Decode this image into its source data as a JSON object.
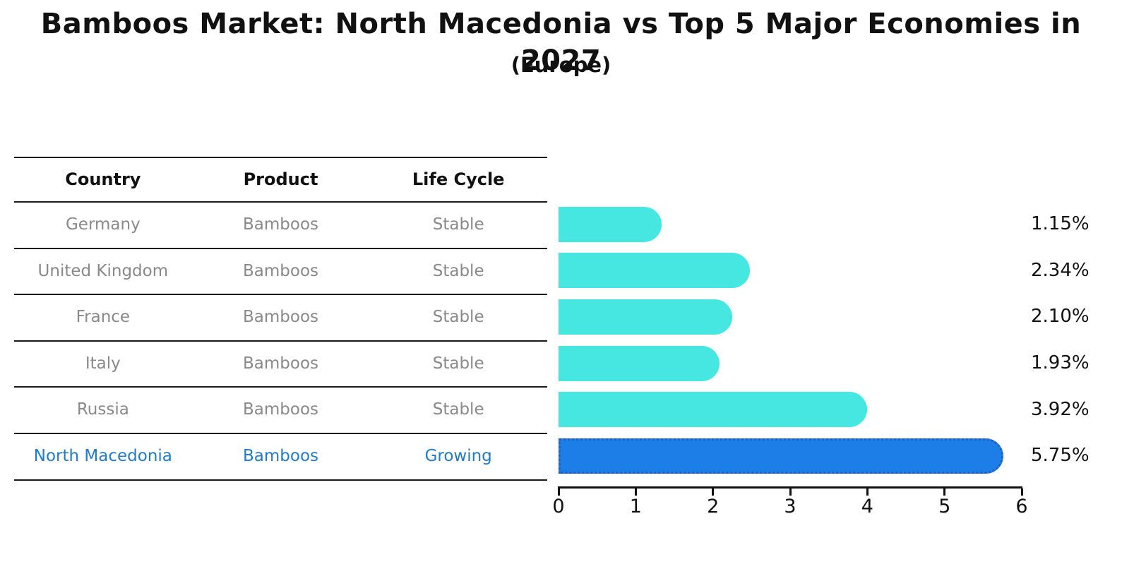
{
  "title": "Bamboos Market: North Macedonia vs Top 5 Major Economies in 2027",
  "subtitle": "(Europe)",
  "table": {
    "headers": [
      "Country",
      "Product",
      "Life Cycle"
    ],
    "rows": [
      {
        "country": "Germany",
        "product": "Bamboos",
        "life_cycle": "Stable",
        "highlight": false
      },
      {
        "country": "United Kingdom",
        "product": "Bamboos",
        "life_cycle": "Stable",
        "highlight": false
      },
      {
        "country": "France",
        "product": "Bamboos",
        "life_cycle": "Stable",
        "highlight": false
      },
      {
        "country": "Italy",
        "product": "Bamboos",
        "life_cycle": "Stable",
        "highlight": false
      },
      {
        "country": "Russia",
        "product": "Bamboos",
        "life_cycle": "Stable",
        "highlight": false
      },
      {
        "country": "North Macedonia",
        "product": "Bamboos",
        "life_cycle": "Growing",
        "highlight": true
      }
    ]
  },
  "chart_data": {
    "type": "bar",
    "orientation": "horizontal",
    "title": "Bamboos Market: North Macedonia vs Top 5 Major Economies in 2027",
    "subtitle": "(Europe)",
    "categories": [
      "Germany",
      "United Kingdom",
      "France",
      "Italy",
      "Russia",
      "North Macedonia"
    ],
    "values": [
      1.15,
      2.34,
      2.1,
      1.93,
      3.92,
      5.75
    ],
    "value_labels": [
      "1.15%",
      "2.34%",
      "2.10%",
      "1.93%",
      "3.92%",
      "5.75%"
    ],
    "xlim": [
      0,
      6
    ],
    "x_ticks": [
      0,
      1,
      2,
      3,
      4,
      5,
      6
    ],
    "grid": false,
    "legend": "none",
    "bar_color": "#46e6e1",
    "highlight_color": "#1e7ee8",
    "highlight_index": 5
  },
  "colors": {
    "row_text": "#898989",
    "highlight_text": "#1f7ccc",
    "line": "#1a1a1a",
    "label_text": "#111111"
  }
}
